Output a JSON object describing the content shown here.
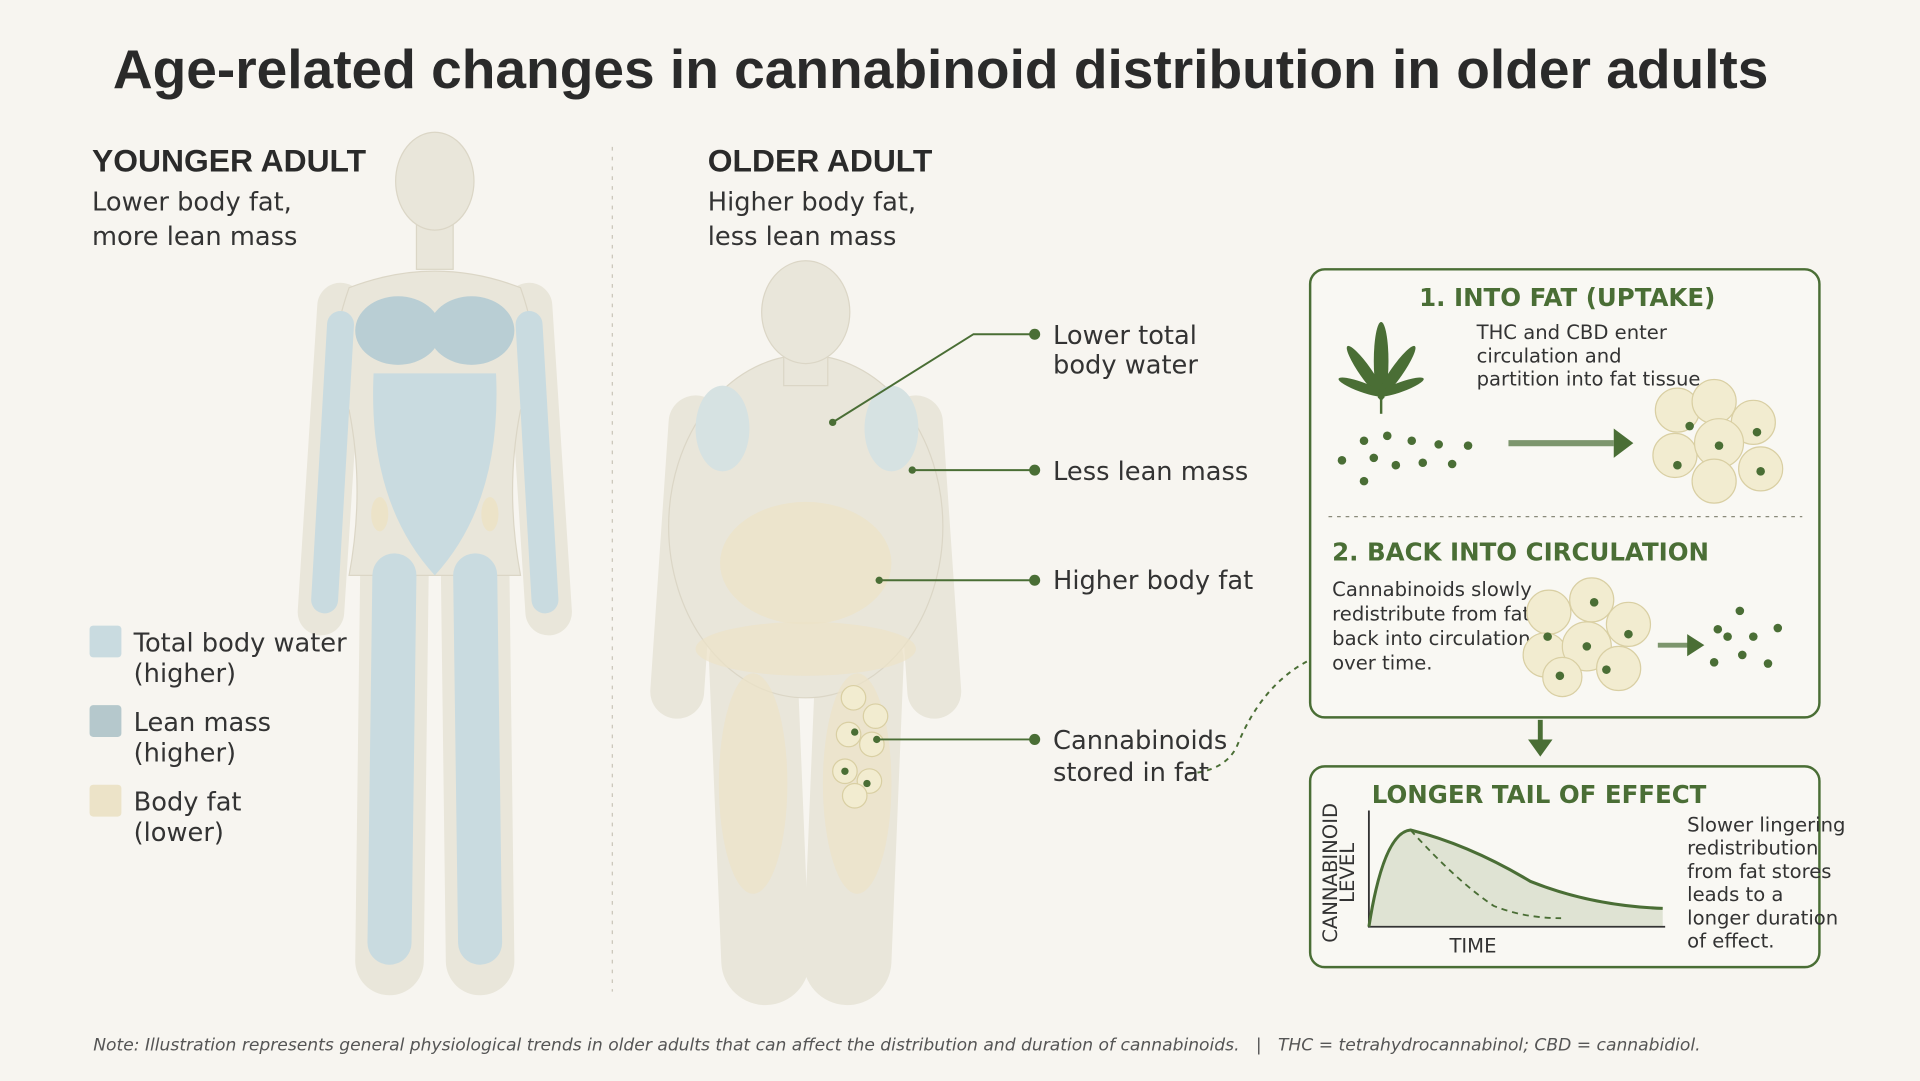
{
  "title": "Age-related changes in cannabinoid distribution in older adults",
  "younger": {
    "heading": "YOUNGER ADULT",
    "subtitle": [
      "Lower body fat,",
      "more lean mass"
    ]
  },
  "legend": [
    {
      "label": "Total body water",
      "note": "(higher)"
    },
    {
      "label": "Lean mass",
      "note": "(higher)"
    },
    {
      "label": "Body fat",
      "note": "(lower)"
    }
  ],
  "older": {
    "heading": "OLDER ADULT",
    "subtitle": [
      "Higher body fat,",
      "less lean mass"
    ],
    "callouts": [
      [
        "Lower total",
        "body water"
      ],
      [
        "Less lean mass"
      ],
      [
        "Higher body fat"
      ],
      [
        "Cannabinoids",
        "stored in fat"
      ]
    ]
  },
  "panels": [
    {
      "title": "1. INTO FAT (UPTAKE)",
      "text": [
        "THC and CBD enter",
        "circulation and",
        "partition into fat tissue."
      ]
    },
    {
      "title": "2. BACK INTO CIRCULATION",
      "text": [
        "Cannabinoids slowly",
        "redistribute from fat",
        "back into circulation",
        "over time."
      ]
    },
    {
      "title": "LONGER TAIL OF EFFECT",
      "y_label": [
        "CANNABINOID",
        "LEVEL"
      ],
      "x_label": "TIME",
      "text": [
        "Slower lingering",
        "redistribution",
        "from fat stores",
        "leads to a",
        "longer duration",
        "of effect."
      ]
    }
  ],
  "note": "Note: Illustration represents general physiological trends in older adults that can affect the distribution and duration of cannabinoids.   |   THC = tetrahydrocannabinol; CBD = cannabidiol."
}
